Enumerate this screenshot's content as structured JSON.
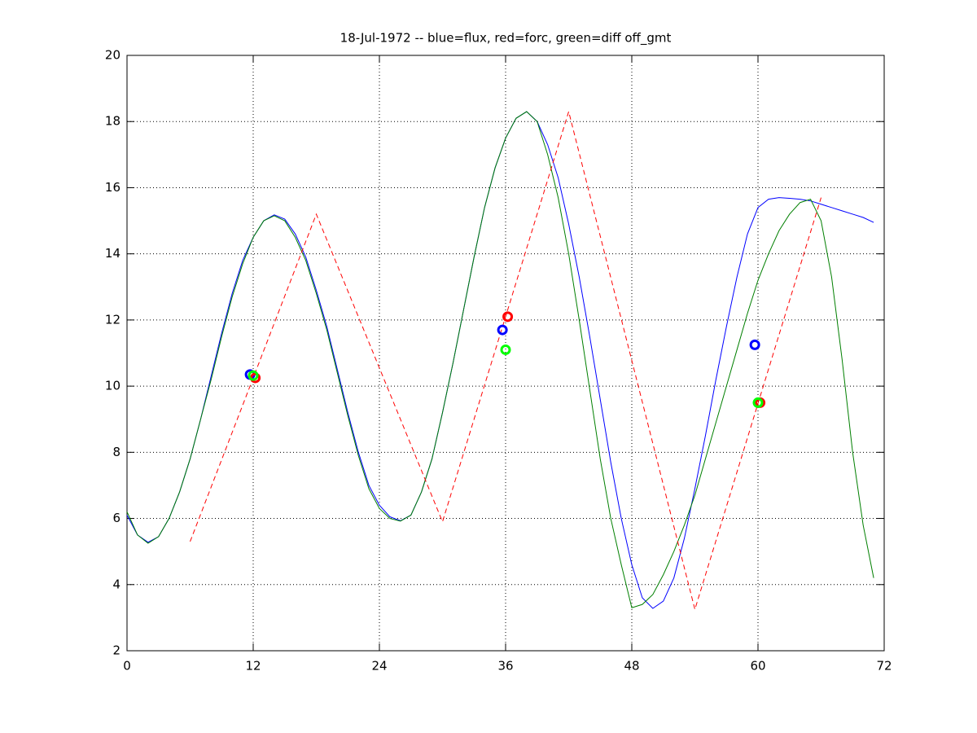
{
  "chart_data": {
    "type": "line",
    "title": "18-Jul-1972 -- blue=flux, red=forc, green=diff off_gmt",
    "xlim": [
      0,
      72
    ],
    "xticks": [
      0,
      12,
      24,
      36,
      48,
      60,
      72
    ],
    "ylim": [
      2,
      20
    ],
    "yticks": [
      2,
      4,
      6,
      8,
      10,
      12,
      14,
      16,
      18,
      20
    ],
    "grid": true,
    "series": [
      {
        "color": "#0000ff",
        "dashed": false,
        "x": [
          0,
          1,
          2,
          3,
          4,
          5,
          6,
          7,
          8,
          9,
          10,
          11,
          12,
          13,
          14,
          15,
          16,
          17,
          18,
          19,
          20,
          21,
          22,
          23,
          24,
          25,
          26,
          27,
          28,
          29,
          30,
          31,
          32,
          33,
          34,
          35,
          36,
          37,
          38,
          39,
          40,
          41,
          42,
          43,
          44,
          45,
          46,
          47,
          48,
          49,
          50,
          51,
          52,
          53,
          54,
          55,
          56,
          57,
          58,
          59,
          60,
          61,
          62,
          63,
          64,
          65,
          66,
          67,
          68,
          69,
          70,
          71
        ],
        "values": [
          6.1,
          5.5,
          5.28,
          5.45,
          6.0,
          6.8,
          7.8,
          9.0,
          10.3,
          11.6,
          12.8,
          13.8,
          14.5,
          15.0,
          15.18,
          15.05,
          14.6,
          13.9,
          12.9,
          11.8,
          10.5,
          9.2,
          8.0,
          7.0,
          6.4,
          6.05,
          5.93,
          6.1,
          6.8,
          7.8,
          9.2,
          10.7,
          12.3,
          13.9,
          15.4,
          16.6,
          17.5,
          18.1,
          18.3,
          18.0,
          17.3,
          16.3,
          14.9,
          13.3,
          11.5,
          9.6,
          7.7,
          6.0,
          4.6,
          3.6,
          3.28,
          3.5,
          4.2,
          5.4,
          6.9,
          8.5,
          10.2,
          11.8,
          13.3,
          14.6,
          15.4,
          15.65,
          15.7,
          15.68,
          15.65,
          15.6,
          15.5,
          15.4,
          15.3,
          15.2,
          15.1,
          14.95
        ]
      },
      {
        "color": "#007f00",
        "dashed": false,
        "x": [
          0,
          1,
          2,
          3,
          4,
          5,
          6,
          7,
          8,
          9,
          10,
          11,
          12,
          13,
          14,
          15,
          16,
          17,
          18,
          19,
          20,
          21,
          22,
          23,
          24,
          25,
          26,
          27,
          28,
          29,
          30,
          31,
          32,
          33,
          34,
          35,
          36,
          37,
          38,
          39,
          40,
          41,
          42,
          43,
          44,
          45,
          46,
          47,
          48,
          49,
          50,
          51,
          52,
          53,
          54,
          55,
          56,
          57,
          58,
          59,
          60,
          61,
          62,
          63,
          64,
          65,
          66,
          67,
          68,
          69,
          70,
          71
        ],
        "values": [
          6.2,
          5.5,
          5.25,
          5.45,
          6.0,
          6.8,
          7.8,
          9.0,
          10.2,
          11.5,
          12.7,
          13.7,
          14.5,
          15.0,
          15.15,
          15.0,
          14.5,
          13.8,
          12.8,
          11.7,
          10.4,
          9.1,
          7.9,
          6.9,
          6.3,
          6.0,
          5.92,
          6.1,
          6.8,
          7.8,
          9.2,
          10.7,
          12.3,
          13.9,
          15.4,
          16.6,
          17.5,
          18.1,
          18.3,
          18.0,
          17.0,
          15.7,
          14.0,
          12.0,
          9.9,
          7.8,
          6.0,
          4.6,
          3.3,
          3.4,
          3.7,
          4.3,
          5.0,
          5.8,
          6.7,
          7.8,
          8.9,
          10.0,
          11.1,
          12.2,
          13.2,
          14.0,
          14.7,
          15.2,
          15.55,
          15.65,
          15.0,
          13.3,
          10.8,
          8.0,
          5.8,
          4.2
        ]
      },
      {
        "color": "#ff0000",
        "dashed": true,
        "x": [
          6,
          18,
          30,
          42,
          54,
          66
        ],
        "values": [
          5.3,
          15.2,
          5.9,
          18.3,
          3.25,
          15.7
        ]
      }
    ],
    "points": [
      {
        "color": "#0000ff",
        "x": [
          11.7,
          35.7,
          59.7
        ],
        "values": [
          10.35,
          11.7,
          11.25
        ]
      },
      {
        "color": "#ff0000",
        "x": [
          12.2,
          36.2,
          60.2
        ],
        "values": [
          10.25,
          12.1,
          9.5
        ]
      },
      {
        "color": "#00ff00",
        "x": [
          12.0,
          36.0,
          60.0
        ],
        "values": [
          10.32,
          11.1,
          9.5
        ]
      }
    ]
  }
}
